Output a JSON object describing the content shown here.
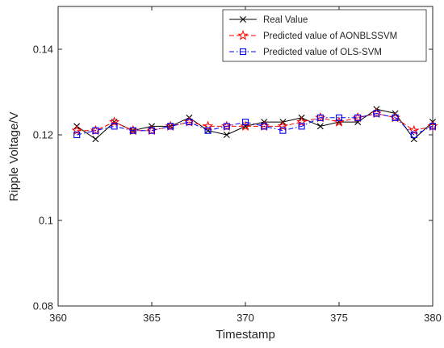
{
  "chart_data": {
    "type": "line",
    "title": "",
    "xlabel": "Timestamp",
    "ylabel": "Ripple Voltage/V",
    "xlim": [
      360,
      380
    ],
    "ylim": [
      0.08,
      0.15
    ],
    "xticks": [
      "360",
      "365",
      "370",
      "375",
      "380"
    ],
    "yticks": [
      "0.08",
      "0.1",
      "0.12",
      "0.14"
    ],
    "grid": false,
    "legend_position": "top-right",
    "x": [
      361,
      362,
      363,
      364,
      365,
      366,
      367,
      368,
      369,
      370,
      371,
      372,
      373,
      374,
      375,
      376,
      377,
      378,
      379,
      380
    ],
    "series": [
      {
        "name": "Real Value",
        "color": "#000000",
        "line_style": "solid",
        "marker": "x-mark",
        "values": [
          0.122,
          0.119,
          0.123,
          0.121,
          0.122,
          0.122,
          0.124,
          0.121,
          0.12,
          0.122,
          0.123,
          0.123,
          0.124,
          0.122,
          0.123,
          0.123,
          0.126,
          0.125,
          0.119,
          0.123
        ]
      },
      {
        "name": "Predicted value of AONBLSSVM",
        "color": "#ff0000",
        "line_style": "dashed",
        "marker": "star",
        "values": [
          0.121,
          0.121,
          0.123,
          0.121,
          0.121,
          0.122,
          0.123,
          0.122,
          0.122,
          0.122,
          0.122,
          0.122,
          0.123,
          0.124,
          0.123,
          0.124,
          0.125,
          0.124,
          0.121,
          0.122
        ]
      },
      {
        "name": "Predicted value of OLS-SVM",
        "color": "#0000ff",
        "line_style": "dash-dot",
        "marker": "square",
        "values": [
          0.12,
          0.121,
          0.122,
          0.121,
          0.121,
          0.122,
          0.123,
          0.121,
          0.122,
          0.123,
          0.122,
          0.121,
          0.122,
          0.124,
          0.124,
          0.124,
          0.125,
          0.124,
          0.12,
          0.122
        ]
      }
    ]
  }
}
